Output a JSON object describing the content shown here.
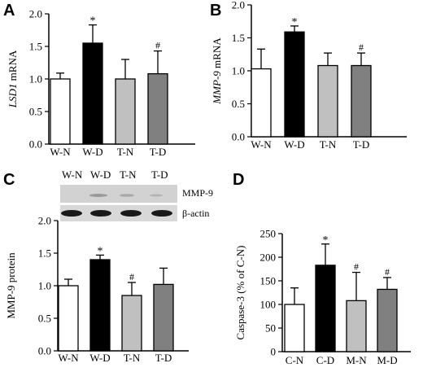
{
  "panels": [
    {
      "letter": "A"
    },
    {
      "letter": "B"
    },
    {
      "letter": "C"
    },
    {
      "letter": "D"
    }
  ],
  "blot": {
    "lane_labels": [
      "W-N",
      "W-D",
      "T-N",
      "T-D"
    ],
    "band_labels": [
      "MMP-9",
      "β-actin"
    ]
  },
  "colors": {
    "fills": [
      "#ffffff",
      "#000000",
      "#c0c0c0",
      "#808080"
    ]
  },
  "chart_data": [
    {
      "type": "bar",
      "categories": [
        "W-N",
        "W-D",
        "T-N",
        "T-D"
      ],
      "values": [
        1.0,
        1.55,
        1.0,
        1.08
      ],
      "errors": [
        0.09,
        0.28,
        0.3,
        0.35
      ],
      "sig": [
        "",
        "*",
        "",
        "#"
      ],
      "ylabel_italic": "LSD1",
      "ylabel_rest": " mRNA",
      "ylim": [
        0,
        2.0
      ],
      "yticks": [
        "0.0",
        "0.5",
        "1.0",
        "1.5",
        "2.0"
      ]
    },
    {
      "type": "bar",
      "categories": [
        "W-N",
        "W-D",
        "T-N",
        "T-D"
      ],
      "values": [
        1.03,
        1.59,
        1.08,
        1.08
      ],
      "errors": [
        0.3,
        0.09,
        0.19,
        0.19
      ],
      "sig": [
        "",
        "*",
        "",
        "#"
      ],
      "ylabel_italic": "MMP-9",
      "ylabel_rest": " mRNA",
      "ylim": [
        0,
        2.0
      ],
      "yticks": [
        "0.0",
        "0.5",
        "1.0",
        "1.5",
        "2.0"
      ]
    },
    {
      "type": "bar",
      "categories": [
        "W-N",
        "W-D",
        "T-N",
        "T-D"
      ],
      "values": [
        1.0,
        1.4,
        0.85,
        1.02
      ],
      "errors": [
        0.1,
        0.07,
        0.2,
        0.25
      ],
      "sig": [
        "",
        "*",
        "#",
        ""
      ],
      "ylabel_italic": "",
      "ylabel_rest": "MMP-9 protein",
      "ylim": [
        0,
        2.0
      ],
      "yticks": [
        "0.0",
        "0.5",
        "1.0",
        "1.5",
        "2.0"
      ]
    },
    {
      "type": "bar",
      "categories": [
        "C-N",
        "C-D",
        "M-N",
        "M-D"
      ],
      "values": [
        100,
        183,
        108,
        132
      ],
      "errors": [
        35,
        45,
        60,
        25
      ],
      "sig": [
        "",
        "*",
        "#",
        "#"
      ],
      "ylabel_italic": "",
      "ylabel_rest": "Caspase-3 (% of C-N)",
      "ylim": [
        0,
        250
      ],
      "yticks": [
        "0",
        "50",
        "100",
        "150",
        "200",
        "250"
      ]
    }
  ]
}
